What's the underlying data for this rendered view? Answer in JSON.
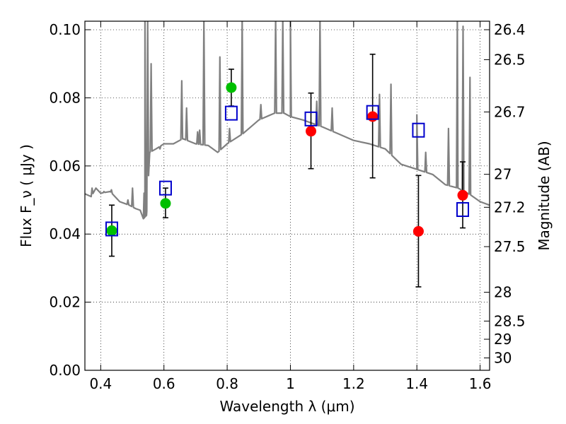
{
  "chart_data": {
    "type": "scatter",
    "xlabel": "Wavelength  λ (μm)",
    "ylabel_left": "Flux  F_ν  ( μJy )",
    "ylabel_right": "Magnitude (AB)",
    "xlim": [
      0.35,
      1.63
    ],
    "ylim": [
      0.0,
      0.1025
    ],
    "xticks": [
      0.4,
      0.6,
      0.8,
      1.0,
      1.2,
      1.4,
      1.6
    ],
    "xtick_labels": [
      "0.4",
      "0.6",
      "0.8",
      "1",
      "1.2",
      "1.4",
      "1.6"
    ],
    "yticks": [
      0.0,
      0.02,
      0.04,
      0.06,
      0.08,
      0.1
    ],
    "ytick_labels": [
      "0.00",
      "0.02",
      "0.04",
      "0.06",
      "0.08",
      "0.10"
    ],
    "magnitude_ticks": [
      "26.4",
      "26.5",
      "26.7",
      "27",
      "27.2",
      "27.5",
      "28",
      "28.5",
      "29",
      "30"
    ],
    "grid": true,
    "series": [
      {
        "marker": "circle",
        "color": "#00bf00",
        "points": [
          {
            "x": 0.435,
            "y": 0.041,
            "yerr_low": 0.0335,
            "yerr_high": 0.0485
          },
          {
            "x": 0.605,
            "y": 0.049,
            "yerr_low": 0.0448,
            "yerr_high": 0.0535
          },
          {
            "x": 0.813,
            "y": 0.083,
            "yerr_low": 0.0776,
            "yerr_high": 0.0884
          }
        ]
      },
      {
        "marker": "circle",
        "color": "#ff0000",
        "points": [
          {
            "x": 1.065,
            "y": 0.0702,
            "yerr_low": 0.0592,
            "yerr_high": 0.0814
          },
          {
            "x": 1.26,
            "y": 0.0745,
            "yerr_low": 0.0565,
            "yerr_high": 0.0928
          },
          {
            "x": 1.405,
            "y": 0.0408,
            "yerr_low": 0.0245,
            "yerr_high": 0.0572
          },
          {
            "x": 1.545,
            "y": 0.0514,
            "yerr_low": 0.0418,
            "yerr_high": 0.0612
          }
        ]
      },
      {
        "marker": "open-square",
        "color": "#0000cc",
        "points": [
          {
            "x": 0.435,
            "y": 0.0415
          },
          {
            "x": 0.605,
            "y": 0.0535
          },
          {
            "x": 0.813,
            "y": 0.0755
          },
          {
            "x": 1.065,
            "y": 0.0738
          },
          {
            "x": 1.26,
            "y": 0.0757
          },
          {
            "x": 1.405,
            "y": 0.0705
          },
          {
            "x": 1.545,
            "y": 0.0472
          }
        ]
      }
    ],
    "model_spectrum": {
      "color": "#808080",
      "continuum": [
        [
          0.35,
          0.0518
        ],
        [
          0.37,
          0.051
        ],
        [
          0.385,
          0.0535
        ],
        [
          0.4,
          0.052
        ],
        [
          0.43,
          0.0525
        ],
        [
          0.46,
          0.0495
        ],
        [
          0.49,
          0.0485
        ],
        [
          0.51,
          0.0475
        ],
        [
          0.525,
          0.047
        ],
        [
          0.535,
          0.0445
        ],
        [
          0.545,
          0.0455
        ],
        [
          0.555,
          0.064
        ],
        [
          0.575,
          0.065
        ],
        [
          0.6,
          0.0665
        ],
        [
          0.63,
          0.0665
        ],
        [
          0.66,
          0.068
        ],
        [
          0.7,
          0.0665
        ],
        [
          0.74,
          0.066
        ],
        [
          0.77,
          0.064
        ],
        [
          0.8,
          0.0665
        ],
        [
          0.85,
          0.0695
        ],
        [
          0.9,
          0.0735
        ],
        [
          0.95,
          0.0755
        ],
        [
          0.98,
          0.0755
        ],
        [
          1.0,
          0.0745
        ],
        [
          1.04,
          0.0735
        ],
        [
          1.1,
          0.0715
        ],
        [
          1.15,
          0.0695
        ],
        [
          1.2,
          0.0675
        ],
        [
          1.25,
          0.0665
        ],
        [
          1.3,
          0.065
        ],
        [
          1.35,
          0.0605
        ],
        [
          1.4,
          0.059
        ],
        [
          1.45,
          0.0575
        ],
        [
          1.49,
          0.0545
        ],
        [
          1.53,
          0.0535
        ],
        [
          1.57,
          0.0515
        ],
        [
          1.6,
          0.0495
        ],
        [
          1.63,
          0.0485
        ]
      ],
      "emission_lines": [
        [
          0.3727,
          0.0535
        ],
        [
          0.4102,
          0.0525
        ],
        [
          0.434,
          0.053
        ],
        [
          0.4861,
          0.05
        ],
        [
          0.5007,
          0.0535
        ],
        [
          0.537,
          0.052
        ],
        [
          0.54,
          0.103
        ],
        [
          0.5485,
          0.103
        ],
        [
          0.5595,
          0.09
        ],
        [
          0.5875,
          0.065
        ],
        [
          0.6563,
          0.085
        ],
        [
          0.6716,
          0.077
        ],
        [
          0.7065,
          0.07
        ],
        [
          0.713,
          0.0705
        ],
        [
          0.7265,
          0.103
        ],
        [
          0.777,
          0.092
        ],
        [
          0.8075,
          0.071
        ],
        [
          0.8475,
          0.103
        ],
        [
          0.9065,
          0.078
        ],
        [
          0.9532,
          0.103
        ],
        [
          0.976,
          0.103
        ],
        [
          1.0,
          0.103
        ],
        [
          1.0833,
          0.079
        ],
        [
          1.0935,
          0.103
        ],
        [
          1.132,
          0.077
        ],
        [
          1.2818,
          0.081
        ],
        [
          1.318,
          0.084
        ],
        [
          1.4,
          0.075
        ],
        [
          1.428,
          0.064
        ],
        [
          1.5,
          0.071
        ],
        [
          1.528,
          0.103
        ],
        [
          1.546,
          0.101
        ],
        [
          1.568,
          0.086
        ]
      ]
    }
  }
}
